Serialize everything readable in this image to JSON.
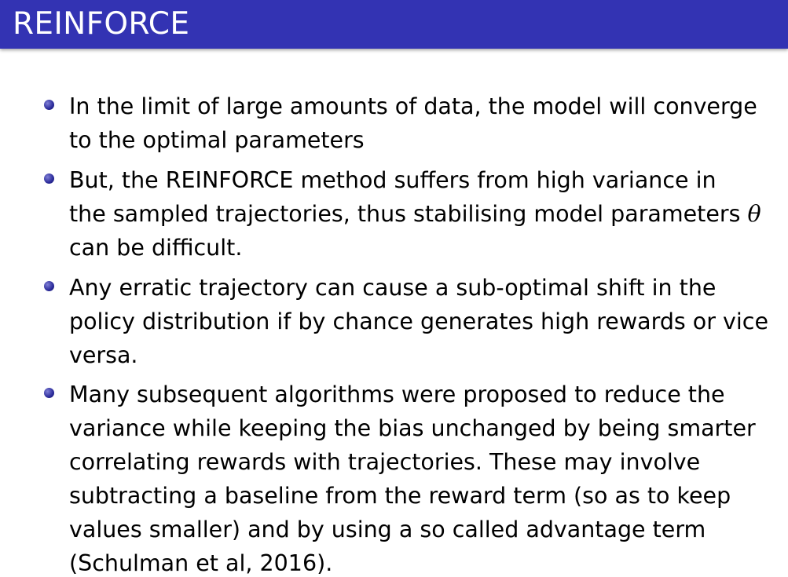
{
  "slide": {
    "title": "REINFORCE",
    "bullets": [
      {
        "lines": [
          "In the limit of large amounts of data, the model will converge",
          "to the optimal parameters"
        ]
      },
      {
        "lines": [
          "But, the REINFORCE method suffers from high variance in",
          "the sampled trajectories, thus stabilising model parameters",
          "can be difficult."
        ],
        "symbol": "θ"
      },
      {
        "lines": [
          "Any erratic trajectory can cause a sub-optimal shift in the",
          "policy distribution if by chance generates high rewards or vice",
          "versa."
        ]
      },
      {
        "lines": [
          "Many subsequent algorithms were proposed to reduce the",
          "variance while keeping the bias unchanged by being smarter",
          "correlating rewards with trajectories. These may involve",
          "subtracting a baseline from the reward term (so as to keep",
          "values smaller) and by using a so called advantage term",
          "(Schulman et al, 2016)."
        ]
      }
    ]
  }
}
